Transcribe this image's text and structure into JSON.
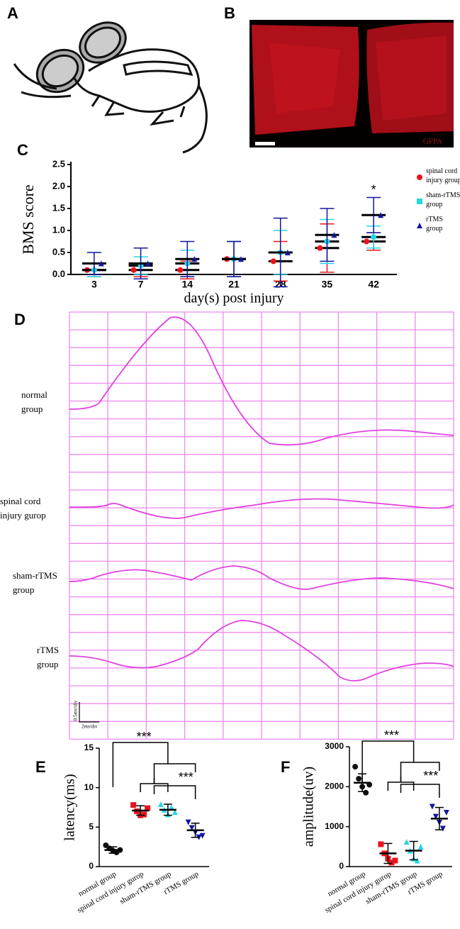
{
  "panels": [
    "A",
    "B",
    "C",
    "D",
    "E",
    "F"
  ],
  "image_label": "GFPA",
  "traces": {
    "labels": [
      [
        "normal",
        "group"
      ],
      [
        "spinal cord",
        "injury gurop"
      ],
      [
        "sham-rTMS",
        "group"
      ],
      [
        "rTMS",
        "group"
      ]
    ],
    "scale_y": "0.5mv/div",
    "scale_x": "2ms/div"
  },
  "chart_data": [
    {
      "type": "scatter",
      "ylabel": "BMS score",
      "xlabel": "day(s) post injury",
      "categories": [
        "3",
        "7",
        "14",
        "21",
        "28",
        "35",
        "42"
      ],
      "ylim": [
        0,
        2.5
      ],
      "yticks": [
        {
          "value": 0,
          "label": "0.0"
        },
        0.5,
        {
          "value": 1,
          "label": "1.0"
        },
        1.5,
        {
          "value": 2,
          "label": "2.0"
        },
        2.5
      ],
      "annotation": "*",
      "series": [
        {
          "name": "spinal cord injury group",
          "color": "#e8141c",
          "values": [
            0.1,
            0.1,
            0.1,
            0.35,
            0.3,
            0.6,
            0.75
          ],
          "errors": [
            0.15,
            0.15,
            0.2,
            0.4,
            0.45,
            0.55,
            0.2
          ]
        },
        {
          "name": "sham-rTMS group",
          "color": "#22d7e6",
          "values": [
            0.1,
            0.2,
            0.25,
            0.35,
            0.5,
            0.75,
            0.85
          ],
          "errors": [
            0.15,
            0.2,
            0.3,
            0.4,
            0.5,
            0.5,
            0.25
          ]
        },
        {
          "name": "rTMS group",
          "color": "#1416a0",
          "values": [
            0.25,
            0.25,
            0.35,
            0.35,
            0.5,
            0.9,
            1.35
          ],
          "errors": [
            0.25,
            0.35,
            0.4,
            0.4,
            0.78,
            0.6,
            0.4
          ]
        }
      ]
    },
    {
      "type": "dot",
      "ylabel": "latency(ms)",
      "categories": [
        "normal group",
        "spinal cord injury gurop",
        "sham-rTMS group",
        "rTMS group"
      ],
      "colors": [
        "#111111",
        "#e8141c",
        "#22d7e6",
        "#1416a0"
      ],
      "values": [
        2.1,
        7.1,
        7.2,
        4.6
      ],
      "errors": [
        0.4,
        0.6,
        0.7,
        0.9
      ],
      "points": [
        [
          2.7,
          2.3,
          2.0,
          1.8,
          2.1
        ],
        [
          7.8,
          7.0,
          6.5,
          6.6,
          7.4
        ],
        [
          7.9,
          7.2,
          6.6,
          7.5,
          6.9
        ],
        [
          5.6,
          4.9,
          4.3,
          3.7,
          3.9
        ]
      ],
      "ylim": [
        0,
        15
      ],
      "yticks": [
        0,
        5,
        10,
        15
      ],
      "annotations": [
        "***",
        "***"
      ]
    },
    {
      "type": "dot",
      "ylabel": "amplitude(uv)",
      "categories": [
        "normal group",
        "spinal cord injury gurop",
        "sham-rTMS group",
        "rTMS group"
      ],
      "colors": [
        "#111111",
        "#e8141c",
        "#22d7e6",
        "#1416a0"
      ],
      "values": [
        2100,
        330,
        400,
        1200
      ],
      "errors": [
        220,
        250,
        230,
        280
      ],
      "points": [
        [
          2500,
          2200,
          2000,
          1850,
          2050
        ],
        [
          560,
          330,
          200,
          100,
          150
        ],
        [
          620,
          400,
          200,
          150,
          500
        ],
        [
          1500,
          1250,
          1100,
          950,
          1350
        ]
      ],
      "ylim": [
        0,
        3000
      ],
      "yticks": [
        0,
        1000,
        2000,
        3000
      ],
      "annotations": [
        "***",
        "***"
      ]
    }
  ]
}
